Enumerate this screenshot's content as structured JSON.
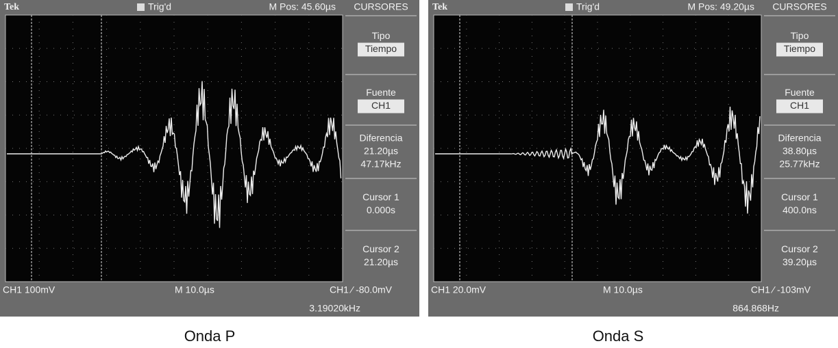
{
  "panels": [
    {
      "caption": "Onda P",
      "top": {
        "brand": "Tek",
        "trigger": "Trig'd",
        "mpos": "M Pos: 45.60µs",
        "menu_title": "CURSORES"
      },
      "menu": [
        {
          "label": "Tipo",
          "values": [
            "Tiempo"
          ]
        },
        {
          "label": "Fuente",
          "values": [
            "CH1"
          ]
        },
        {
          "label": "Diferencia",
          "values": [
            "21.20µs",
            "47.17kHz"
          ]
        },
        {
          "label": "Cursor 1",
          "values": [
            "0.000s"
          ]
        },
        {
          "label": "Cursor 2",
          "values": [
            "21.20µs"
          ]
        }
      ],
      "bottom": {
        "channel": "CH1  100mV",
        "timebase": "M 10.0µs",
        "trigger_level": "CH1 ⁄ -80.0mV",
        "frequency": "3.19020kHz"
      }
    },
    {
      "caption": "Onda S",
      "top": {
        "brand": "Tek",
        "trigger": "Trig'd",
        "mpos": "M Pos: 49.20µs",
        "menu_title": "CURSORES"
      },
      "menu": [
        {
          "label": "Tipo",
          "values": [
            "Tiempo"
          ]
        },
        {
          "label": "Fuente",
          "values": [
            "CH1"
          ]
        },
        {
          "label": "Diferencia",
          "values": [
            "38.80µs",
            "25.77kHz"
          ]
        },
        {
          "label": "Cursor 1",
          "values": [
            "400.0ns"
          ]
        },
        {
          "label": "Cursor 2",
          "values": [
            "39.20µs"
          ]
        }
      ],
      "bottom": {
        "channel": "CH1  20.0mV",
        "timebase": "M 10.0µs",
        "trigger_level": "CH1 ⁄ -103mV",
        "frequency": "864.868Hz"
      }
    }
  ]
}
